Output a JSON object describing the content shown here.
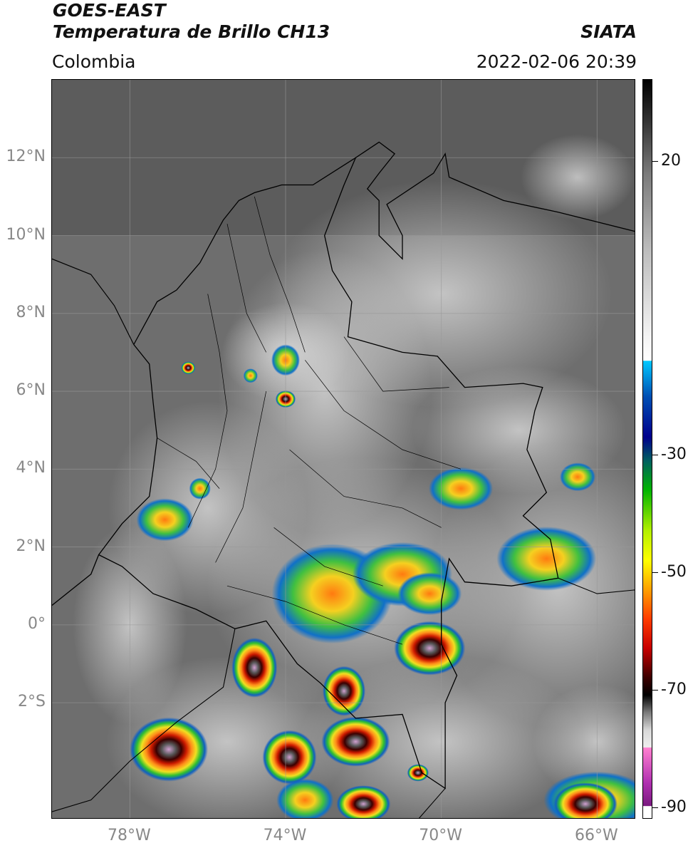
{
  "header": {
    "title_line1": "GOES-EAST",
    "title_line2": "Temperatura de Brillo CH13",
    "region": "Colombia",
    "organization": "SIATA",
    "datetime": "2022-02-06 20:39"
  },
  "map": {
    "lon_range": [
      -80,
      -65
    ],
    "lat_range": [
      -5,
      14
    ],
    "lat_gridlines": [
      12,
      10,
      8,
      6,
      4,
      2,
      0,
      -2
    ],
    "lat_labels": [
      "12°N",
      "10°N",
      "8°N",
      "6°N",
      "4°N",
      "2°N",
      "0°",
      "2°S"
    ],
    "lon_gridlines": [
      -78,
      -74,
      -70,
      -66
    ],
    "lon_labels": [
      "78°W",
      "74°W",
      "70°W",
      "66°W"
    ],
    "gridlines": true
  },
  "colorbar": {
    "range": [
      -92,
      34
    ],
    "ticks": [
      20,
      -30,
      -50,
      -70,
      -90
    ],
    "tick_labels": [
      "20",
      "-30",
      "-50",
      "-70",
      "-90"
    ],
    "units": ""
  }
}
